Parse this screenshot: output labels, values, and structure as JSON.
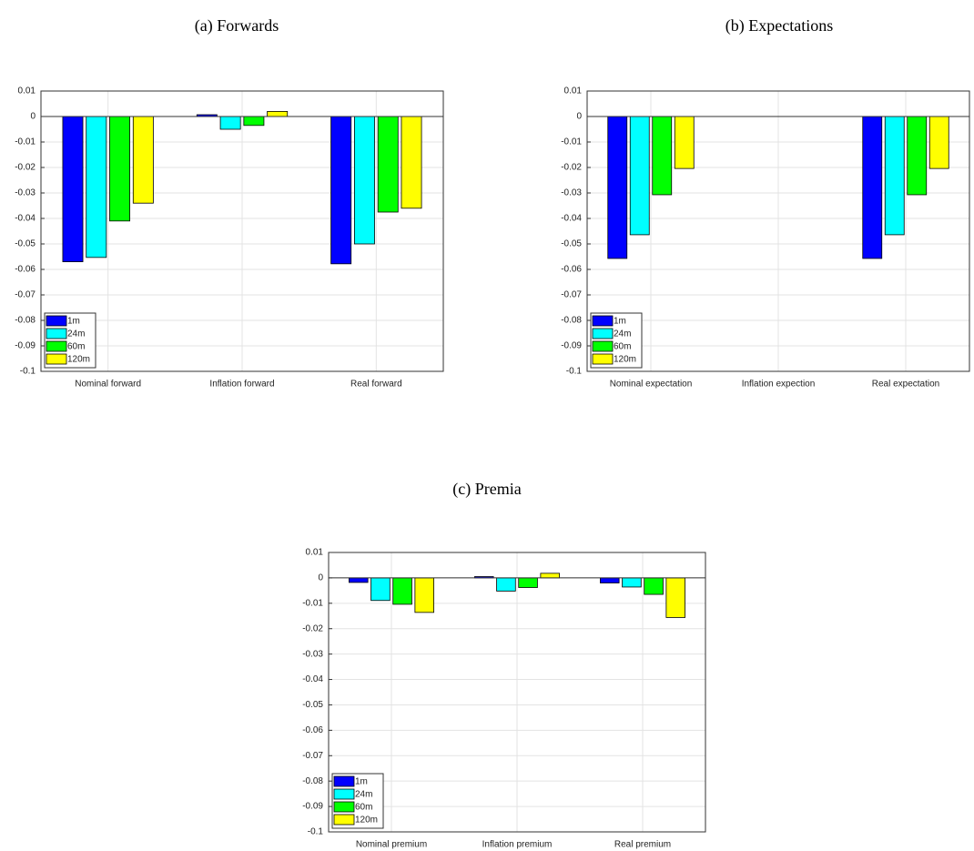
{
  "chart_data": [
    {
      "type": "bar",
      "title": "(a)  Forwards",
      "categories": [
        "Nominal forward",
        "Inflation forward",
        "Real forward"
      ],
      "series": [
        {
          "name": "1m",
          "color": "#0000ff",
          "values": [
            -0.057,
            0.0007,
            -0.0578
          ]
        },
        {
          "name": "24m",
          "color": "#00ffff",
          "values": [
            -0.0553,
            -0.005,
            -0.05
          ]
        },
        {
          "name": "60m",
          "color": "#00ff00",
          "values": [
            -0.041,
            -0.0035,
            -0.0375
          ]
        },
        {
          "name": "120m",
          "color": "#ffff00",
          "values": [
            -0.034,
            0.002,
            -0.036
          ]
        }
      ],
      "ylim": [
        -0.1,
        0.01
      ],
      "yticks": [
        0.01,
        0,
        -0.01,
        -0.02,
        -0.03,
        -0.04,
        -0.05,
        -0.06,
        -0.07,
        -0.08,
        -0.09,
        -0.1
      ],
      "grid": true,
      "legend": "lower-left"
    },
    {
      "type": "bar",
      "title": "(b)  Expectations",
      "categories": [
        "Nominal expectation",
        "Inflation expection",
        "Real expectation"
      ],
      "series": [
        {
          "name": "1m",
          "color": "#0000ff",
          "values": [
            -0.0557,
            0,
            -0.0557
          ]
        },
        {
          "name": "24m",
          "color": "#00ffff",
          "values": [
            -0.0464,
            0,
            -0.0464
          ]
        },
        {
          "name": "60m",
          "color": "#00ff00",
          "values": [
            -0.0307,
            0,
            -0.0307
          ]
        },
        {
          "name": "120m",
          "color": "#ffff00",
          "values": [
            -0.0204,
            0,
            -0.0204
          ]
        }
      ],
      "ylim": [
        -0.1,
        0.01
      ],
      "yticks": [
        0.01,
        0,
        -0.01,
        -0.02,
        -0.03,
        -0.04,
        -0.05,
        -0.06,
        -0.07,
        -0.08,
        -0.09,
        -0.1
      ],
      "grid": true,
      "legend": "lower-left"
    },
    {
      "type": "bar",
      "title": "(c)  Premia",
      "categories": [
        "Nominal premium",
        "Inflation premium",
        "Real premium"
      ],
      "series": [
        {
          "name": "1m",
          "color": "#0000ff",
          "values": [
            -0.0018,
            0.0005,
            -0.002
          ]
        },
        {
          "name": "24m",
          "color": "#00ffff",
          "values": [
            -0.0089,
            -0.0052,
            -0.0036
          ]
        },
        {
          "name": "60m",
          "color": "#00ff00",
          "values": [
            -0.0104,
            -0.0038,
            -0.0065
          ]
        },
        {
          "name": "120m",
          "color": "#ffff00",
          "values": [
            -0.0136,
            0.0018,
            -0.0156
          ]
        }
      ],
      "ylim": [
        -0.1,
        0.01
      ],
      "yticks": [
        0.01,
        0,
        -0.01,
        -0.02,
        -0.03,
        -0.04,
        -0.05,
        -0.06,
        -0.07,
        -0.08,
        -0.09,
        -0.1
      ],
      "grid": true,
      "legend": "lower-left"
    }
  ]
}
